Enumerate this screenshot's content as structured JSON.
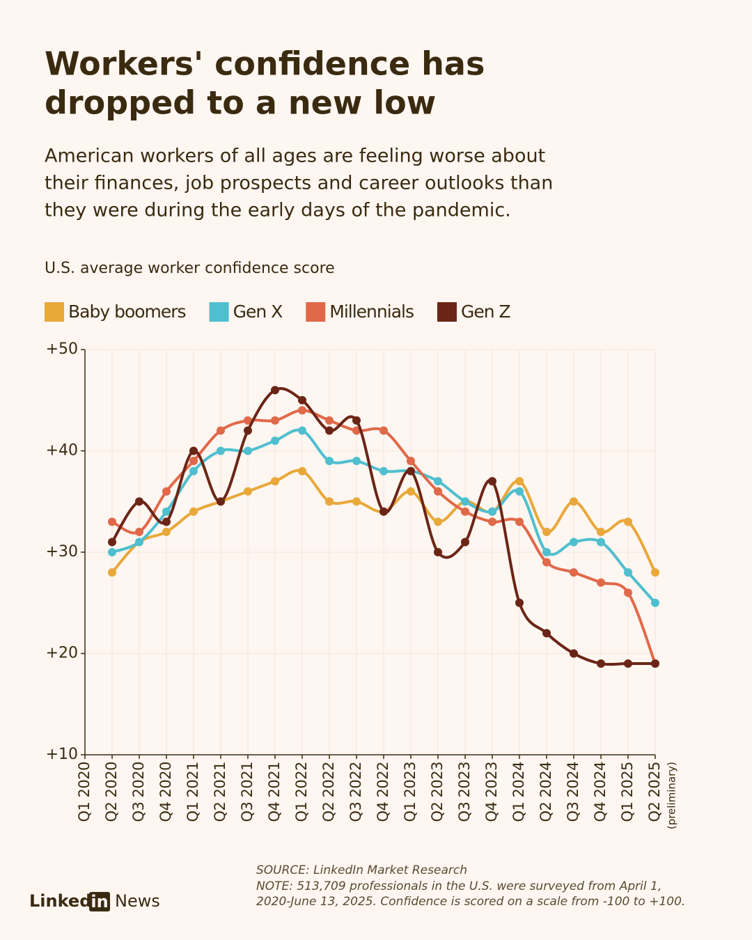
{
  "chart_data": {
    "type": "line",
    "title": [
      "Workers' confidence has",
      "dropped to a new low"
    ],
    "subtitle": [
      "American workers of all ages are feeling worse about",
      "their finances, job prospects and career outlooks than",
      "they were during the early days of the pandemic."
    ],
    "y_axis_title": "U.S. average worker confidence score",
    "categories": [
      "Q1 2020",
      "Q2 2020",
      "Q3 2020",
      "Q4 2020",
      "Q1 2021",
      "Q2 2021",
      "Q3 2021",
      "Q4 2021",
      "Q1 2022",
      "Q2 2022",
      "Q3 2022",
      "Q4 2022",
      "Q1 2023",
      "Q2 2023",
      "Q3 2023",
      "Q4 2023",
      "Q1 2024",
      "Q2 2024",
      "Q3 2024",
      "Q4 2024",
      "Q1 2025",
      "Q2 2025"
    ],
    "last_category_note": "(preliminary)",
    "series": [
      {
        "name": "Baby boomers",
        "color": "#e8a83a",
        "values": [
          null,
          28,
          31,
          32,
          34,
          35,
          36,
          37,
          38,
          35,
          35,
          34,
          36,
          33,
          35,
          34,
          37,
          32,
          35,
          32,
          33,
          28
        ]
      },
      {
        "name": "Gen X",
        "color": "#4fbfcf",
        "values": [
          null,
          30,
          31,
          34,
          38,
          40,
          40,
          41,
          42,
          39,
          39,
          38,
          38,
          37,
          35,
          34,
          36,
          30,
          31,
          31,
          28,
          25
        ]
      },
      {
        "name": "Millennials",
        "color": "#e0694a",
        "values": [
          null,
          33,
          32,
          36,
          39,
          42,
          43,
          43,
          44,
          43,
          42,
          42,
          39,
          36,
          34,
          33,
          33,
          29,
          28,
          27,
          26,
          19
        ]
      },
      {
        "name": "Gen Z",
        "color": "#6b2516",
        "values": [
          null,
          31,
          35,
          33,
          40,
          35,
          42,
          46,
          45,
          42,
          43,
          34,
          38,
          30,
          31,
          37,
          25,
          22,
          20,
          19,
          19,
          19
        ]
      }
    ],
    "ylim": [
      10,
      50
    ],
    "yticks": [
      {
        "value": 10,
        "label": "+10"
      },
      {
        "value": 20,
        "label": "+20"
      },
      {
        "value": 30,
        "label": "+30"
      },
      {
        "value": 40,
        "label": "+40"
      },
      {
        "value": 50,
        "label": "+50"
      }
    ],
    "grid": true,
    "source": [
      "SOURCE: LinkedIn Market Research",
      "NOTE: 513,709 professionals in the U.S. were surveyed from April 1,",
      "2020-June 13, 2025. Confidence is scored on a scale from -100 to +100."
    ],
    "logo": [
      "Linked",
      "in",
      "News"
    ]
  }
}
